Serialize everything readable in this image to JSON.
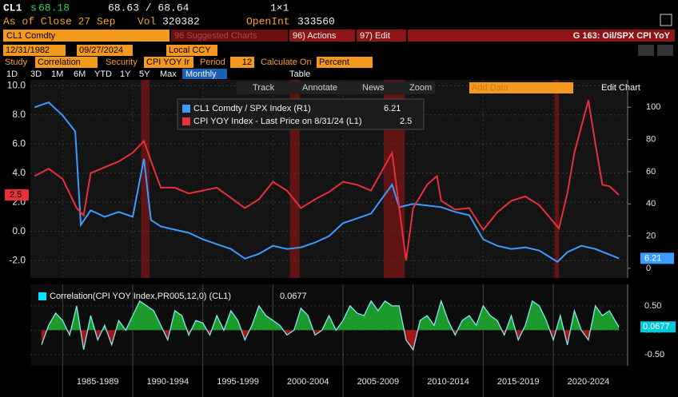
{
  "header": {
    "ticker": "CL1",
    "price": "68.18",
    "bid_ask": "68.63 / 68.64",
    "size": "1×1",
    "as_of": "As of Close 27 Sep",
    "vol_label": "Vol",
    "vol": "320382",
    "open_int_label": "OpenInt",
    "open_int": "333560"
  },
  "toolbar": {
    "security": "CL1 Comdty",
    "suggested": "96 Suggested Charts",
    "actions": "96) Actions",
    "edit": "97) Edit",
    "chart_name": "G 163: Oil/SPX CPI YoY"
  },
  "dates": {
    "start": "12/31/1982",
    "end": "09/27/2024",
    "currency": "Local CCY"
  },
  "study": {
    "study_label": "Study",
    "study": "Correlation",
    "security_label": "Security",
    "security": "CPI YOY Ir",
    "period_label": "Period",
    "period": "12",
    "calc_label": "Calculate On",
    "calc": "Percent"
  },
  "ranges": [
    "1D",
    "3D",
    "1M",
    "6M",
    "YTD",
    "1Y",
    "5Y",
    "Max"
  ],
  "frequency": "Monthly",
  "table": "Table",
  "chart_tools": [
    "Track",
    "Annotate",
    "News",
    "Zoom"
  ],
  "add_data": "Add Data",
  "edit_chart": "Edit Chart",
  "chart_data": [
    {
      "type": "line",
      "xlim": [
        1982.7,
        2025.3
      ],
      "ylim": [
        -3.2,
        10.4
      ],
      "yticks": [
        {
          "value": 10,
          "label": "10.0"
        },
        {
          "value": 8,
          "label": "8.0"
        },
        {
          "value": 6,
          "label": "6.0"
        },
        {
          "value": 4,
          "label": "4.0"
        },
        {
          "value": 2,
          "label": "2.0"
        },
        {
          "value": 0,
          "label": "0.0"
        },
        {
          "value": -2,
          "label": "-2.0"
        }
      ],
      "y2lim": [
        -6,
        117
      ],
      "y2ticks": [
        0,
        20,
        40,
        60,
        80,
        100
      ],
      "grid": true,
      "recessions": [
        [
          1990.6,
          1991.2
        ],
        [
          2001.2,
          2001.9
        ],
        [
          2007.9,
          2009.4
        ],
        [
          2020.1,
          2020.4
        ]
      ],
      "recession_color": "#7a1414",
      "series": [
        {
          "name": "CL1 Comdty / SPX Index (R1)",
          "color": "#3d9bff",
          "axis": "y2",
          "x": [
            1983,
            1984,
            1985,
            1985.9,
            1986.3,
            1987,
            1988,
            1989,
            1990,
            1990.8,
            1991.3,
            1992,
            1993,
            1994,
            1995,
            1996,
            1997,
            1998,
            1999,
            2000,
            2001,
            2002,
            2003,
            2004,
            2005,
            2006,
            2007,
            2008.5,
            2009,
            2010,
            2011,
            2012,
            2013,
            2014,
            2015,
            2016,
            2017,
            2018,
            2019,
            2020.3,
            2021,
            2022,
            2023,
            2024.67
          ],
          "values": [
            100,
            103,
            95,
            85,
            27,
            36,
            32,
            35,
            32,
            68,
            30,
            26,
            24,
            22,
            18,
            15,
            12,
            6,
            9,
            14,
            12,
            13,
            16,
            20,
            28,
            31,
            34,
            52,
            38,
            40,
            39,
            38,
            35,
            33,
            18,
            14,
            12,
            13,
            11,
            4,
            10,
            14,
            12,
            6.21
          ]
        },
        {
          "name": "CPI YOY Index - Last Price on 8/31/24 (L1)",
          "color": "#e8303a",
          "x": [
            1983,
            1984,
            1985,
            1986,
            1986.5,
            1987,
            1988,
            1989,
            1990,
            1990.8,
            1991.5,
            1992,
            1993,
            1994,
            1995,
            1996,
            1997,
            1998,
            1999,
            2000,
            2001,
            2002,
            2003,
            2004,
            2005,
            2006,
            2007,
            2008.5,
            2009.5,
            2010,
            2011,
            2011.7,
            2012,
            2013,
            2014,
            2015,
            2016,
            2017,
            2018,
            2019,
            2020.4,
            2021,
            2021.5,
            2022.5,
            2023,
            2023.5,
            2024,
            2024.67
          ],
          "values": [
            3.8,
            4.3,
            3.6,
            1.6,
            1.1,
            4.0,
            4.4,
            4.8,
            5.4,
            6.2,
            4.3,
            3.0,
            3.0,
            2.6,
            2.8,
            3.0,
            2.3,
            1.6,
            2.2,
            3.4,
            2.8,
            1.6,
            2.2,
            2.7,
            3.4,
            3.2,
            2.8,
            5.4,
            -2.0,
            1.6,
            3.2,
            3.8,
            2.1,
            1.5,
            1.6,
            0.1,
            1.3,
            2.1,
            2.4,
            1.8,
            0.2,
            2.6,
            5.4,
            9.0,
            6.0,
            3.2,
            3.1,
            2.5
          ]
        }
      ]
    },
    {
      "type": "area",
      "xlim": [
        1982.7,
        2025.3
      ],
      "ylim": [
        -0.73,
        0.94
      ],
      "yticks": [
        {
          "value": 0.5,
          "label": "0.50"
        },
        {
          "value": 0,
          "label": "0.00"
        },
        {
          "value": -0.5,
          "label": "-0.50"
        }
      ],
      "xticks": [
        {
          "value": 1985,
          "label": "1985-1989"
        },
        {
          "value": 1990,
          "label": "1990-1994"
        },
        {
          "value": 1995,
          "label": "1995-1999"
        },
        {
          "value": 2000,
          "label": "2000-2004"
        },
        {
          "value": 2005,
          "label": "2005-2009"
        },
        {
          "value": 2010,
          "label": "2010-2014"
        },
        {
          "value": 2015,
          "label": "2015-2019"
        },
        {
          "value": 2020,
          "label": "2020-2024"
        }
      ],
      "positive_color": "#1c9a2c",
      "negative_color": "#a81414",
      "series": [
        {
          "name": "Correlation(CPI YOY Index,PR005,12,0) (CL1)",
          "color": "#7fe8f0",
          "x": [
            1983.5,
            1984,
            1984.5,
            1985,
            1985.5,
            1986,
            1986.5,
            1987,
            1987.5,
            1988,
            1988.5,
            1989,
            1989.5,
            1990,
            1990.5,
            1991,
            1991.5,
            1992,
            1992.5,
            1993,
            1993.5,
            1994,
            1994.5,
            1995,
            1995.5,
            1996,
            1996.5,
            1997,
            1997.5,
            1998,
            1998.5,
            1999,
            1999.5,
            2000,
            2000.5,
            2001,
            2001.5,
            2002,
            2002.5,
            2003,
            2003.5,
            2004,
            2004.5,
            2005,
            2005.5,
            2006,
            2006.5,
            2007,
            2007.5,
            2008,
            2008.5,
            2009,
            2009.5,
            2010,
            2010.5,
            2011,
            2011.5,
            2012,
            2012.5,
            2013,
            2013.5,
            2014,
            2014.5,
            2015,
            2015.5,
            2016,
            2016.5,
            2017,
            2017.5,
            2018,
            2018.5,
            2019,
            2019.5,
            2020,
            2020.5,
            2021,
            2021.5,
            2022,
            2022.5,
            2023,
            2023.5,
            2024,
            2024.67
          ],
          "values": [
            -0.3,
            0.1,
            0.35,
            0.2,
            -0.1,
            0.5,
            -0.4,
            0.3,
            -0.2,
            0.1,
            -0.3,
            0.2,
            0.0,
            0.3,
            0.6,
            0.5,
            0.4,
            0.1,
            -0.2,
            0.4,
            0.3,
            -0.1,
            0.2,
            0.15,
            -0.1,
            0.3,
            0.0,
            0.4,
            0.2,
            -0.2,
            0.1,
            0.5,
            0.3,
            0.2,
            0.1,
            -0.1,
            0.0,
            0.45,
            0.3,
            -0.1,
            0.0,
            0.3,
            0.0,
            0.2,
            0.5,
            0.35,
            0.3,
            0.6,
            0.4,
            0.6,
            0.5,
            0.5,
            -0.2,
            -0.4,
            0.2,
            0.3,
            0.1,
            0.6,
            0.2,
            -0.1,
            0.2,
            0.3,
            0.1,
            0.5,
            0.3,
            0.2,
            -0.1,
            0.3,
            -0.2,
            0.1,
            0.6,
            0.5,
            0.2,
            -0.2,
            0.3,
            -0.3,
            0.4,
            0.0,
            -0.2,
            0.5,
            0.3,
            0.4,
            0.0677
          ]
        }
      ]
    }
  ]
}
